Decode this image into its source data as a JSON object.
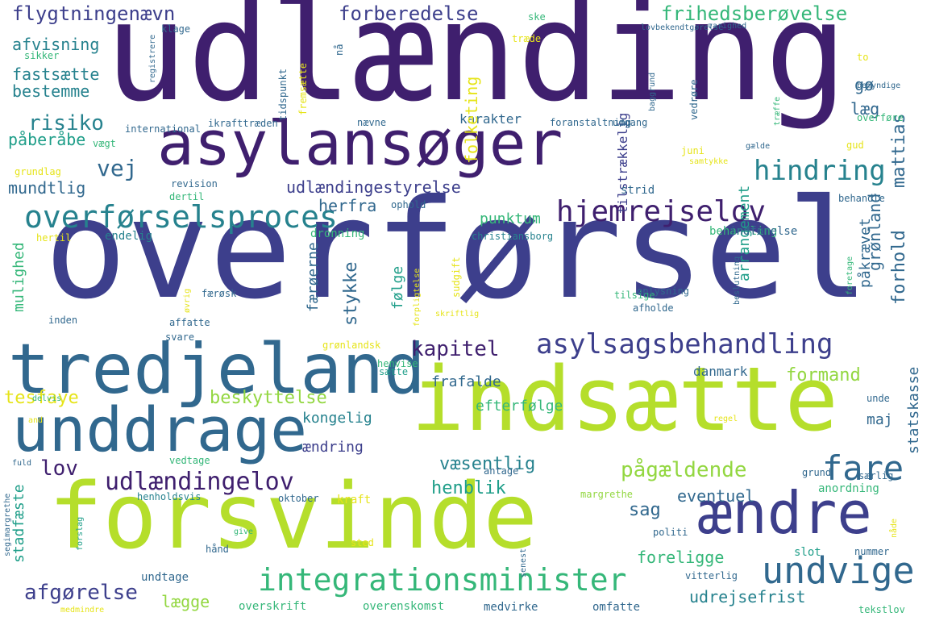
{
  "palette": {
    "dark_purple": "#3f1f6e",
    "indigo": "#3d3f8c",
    "blue": "#31688e",
    "teal": "#26828e",
    "green_teal": "#1f9e89",
    "green": "#35b779",
    "lime": "#93d741",
    "yellow_green": "#b5de2b",
    "yellow": "#e6e419"
  },
  "words": [
    {
      "text": "udlænding",
      "color": "dark_purple"
    },
    {
      "text": "asylansøger",
      "color": "dark_purple"
    },
    {
      "text": "overførsel",
      "color": "indigo"
    },
    {
      "text": "tredjeland",
      "color": "blue"
    },
    {
      "text": "unddrage",
      "color": "blue"
    },
    {
      "text": "forsvinde",
      "color": "yellow_green"
    },
    {
      "text": "indsætte",
      "color": "yellow_green"
    },
    {
      "text": "ændre",
      "color": "indigo"
    },
    {
      "text": "integrationsminister",
      "color": "green"
    },
    {
      "text": "undvige",
      "color": "blue"
    },
    {
      "text": "overførselsproces",
      "color": "teal"
    },
    {
      "text": "hjemrejselov",
      "color": "dark_purple"
    },
    {
      "text": "hindring",
      "color": "teal"
    },
    {
      "text": "asylsagsbehandling",
      "color": "indigo"
    },
    {
      "text": "kapitel",
      "color": "dark_purple"
    },
    {
      "text": "udlændingelov",
      "color": "dark_purple"
    },
    {
      "text": "pågældende",
      "color": "lime"
    },
    {
      "text": "fare",
      "color": "blue"
    },
    {
      "text": "flygtningenævn",
      "color": "indigo"
    },
    {
      "text": "forberedelse",
      "color": "indigo"
    },
    {
      "text": "frihedsberøvelse",
      "color": "green"
    },
    {
      "text": "risiko",
      "color": "teal"
    },
    {
      "text": "vej",
      "color": "blue"
    },
    {
      "text": "udlændingestyrelse",
      "color": "indigo"
    },
    {
      "text": "beskyttelse",
      "color": "lime"
    },
    {
      "text": "tesfaye",
      "color": "yellow"
    },
    {
      "text": "afgørelse",
      "color": "indigo"
    },
    {
      "text": "lægge",
      "color": "lime"
    },
    {
      "text": "udrejsefrist",
      "color": "teal"
    },
    {
      "text": "formand",
      "color": "lime"
    },
    {
      "text": "væsentlig",
      "color": "teal"
    },
    {
      "text": "henblik",
      "color": "green_teal"
    },
    {
      "text": "sag",
      "color": "blue"
    },
    {
      "text": "eventuel",
      "color": "blue"
    },
    {
      "text": "foreligge",
      "color": "green"
    },
    {
      "text": "lov",
      "color": "dark_purple"
    },
    {
      "text": "mundtlig",
      "color": "blue"
    },
    {
      "text": "fastsætte",
      "color": "teal"
    },
    {
      "text": "bestemme",
      "color": "teal"
    },
    {
      "text": "afvisning",
      "color": "teal"
    },
    {
      "text": "påberåbe",
      "color": "green_teal"
    },
    {
      "text": "herfra",
      "color": "blue"
    },
    {
      "text": "punktum",
      "color": "green"
    },
    {
      "text": "kongelig",
      "color": "teal"
    },
    {
      "text": "ændring",
      "color": "indigo"
    },
    {
      "text": "frafalde",
      "color": "blue"
    },
    {
      "text": "efterfølge",
      "color": "green"
    },
    {
      "text": "danmark",
      "color": "blue"
    },
    {
      "text": "maj",
      "color": "blue"
    },
    {
      "text": "karakter",
      "color": "blue"
    },
    {
      "text": "læg",
      "color": "blue"
    },
    {
      "text": "gø",
      "color": "blue"
    },
    {
      "text": "mattias",
      "color": "blue"
    },
    {
      "text": "forhold",
      "color": "blue"
    },
    {
      "text": "grønland",
      "color": "blue"
    },
    {
      "text": "påkrævet",
      "color": "blue"
    },
    {
      "text": "arrangement",
      "color": "green_teal"
    },
    {
      "text": "tilstrækkelig",
      "color": "indigo"
    },
    {
      "text": "statskasse",
      "color": "blue"
    },
    {
      "text": "stykke",
      "color": "blue"
    },
    {
      "text": "følge",
      "color": "green_teal"
    },
    {
      "text": "færøerne",
      "color": "blue"
    },
    {
      "text": "mulighed",
      "color": "green"
    },
    {
      "text": "stadfæste",
      "color": "green_teal"
    },
    {
      "text": "anordning",
      "color": "green"
    },
    {
      "text": "overskrift",
      "color": "green"
    },
    {
      "text": "overenskomst",
      "color": "green"
    },
    {
      "text": "medvirke",
      "color": "blue"
    },
    {
      "text": "omfatte",
      "color": "blue"
    },
    {
      "text": "undtage",
      "color": "blue"
    },
    {
      "text": "vedtage",
      "color": "green"
    },
    {
      "text": "antage",
      "color": "blue"
    },
    {
      "text": "oktober",
      "color": "blue"
    },
    {
      "text": "kraft",
      "color": "yellow"
    },
    {
      "text": "margrethe",
      "color": "lime"
    },
    {
      "text": "henholdsvis",
      "color": "teal"
    },
    {
      "text": "politi",
      "color": "blue"
    },
    {
      "text": "slot",
      "color": "green_teal"
    },
    {
      "text": "vitterlig",
      "color": "blue"
    },
    {
      "text": "nummer",
      "color": "blue"
    },
    {
      "text": "tekstlov",
      "color": "green"
    },
    {
      "text": "grund",
      "color": "blue"
    },
    {
      "text": "særlig",
      "color": "blue"
    },
    {
      "text": "unde",
      "color": "blue"
    },
    {
      "text": "regel",
      "color": "yellow"
    },
    {
      "text": "nåde",
      "color": "yellow"
    },
    {
      "text": "senest",
      "color": "blue"
    },
    {
      "text": "sted",
      "color": "yellow"
    },
    {
      "text": "hånd",
      "color": "blue"
    },
    {
      "text": "give",
      "color": "green"
    },
    {
      "text": "forslag",
      "color": "green_teal"
    },
    {
      "text": "medmindre",
      "color": "yellow"
    },
    {
      "text": "segimargrethe",
      "color": "blue"
    },
    {
      "text": "fuld",
      "color": "blue"
    },
    {
      "text": "and",
      "color": "yellow"
    },
    {
      "text": "delvis",
      "color": "green"
    },
    {
      "text": "svare",
      "color": "blue"
    },
    {
      "text": "affatte",
      "color": "blue"
    },
    {
      "text": "grønlandsk",
      "color": "yellow"
    },
    {
      "text": "inden",
      "color": "blue"
    },
    {
      "text": "henvise",
      "color": "green"
    },
    {
      "text": "sætte",
      "color": "green_teal"
    },
    {
      "text": "skriftlig",
      "color": "yellow"
    },
    {
      "text": "forpligtelse",
      "color": "yellow"
    },
    {
      "text": "sudgift",
      "color": "yellow"
    },
    {
      "text": "øvrig",
      "color": "yellow"
    },
    {
      "text": "færøsk",
      "color": "blue"
    },
    {
      "text": "tilsige",
      "color": "green"
    },
    {
      "text": "afholde",
      "color": "blue"
    },
    {
      "text": "oplysning",
      "color": "blue"
    },
    {
      "text": "beslutning",
      "color": "blue"
    },
    {
      "text": "foretage",
      "color": "green"
    },
    {
      "text": "behandling",
      "color": "green"
    },
    {
      "text": "indførelse",
      "color": "blue"
    },
    {
      "text": "dronning",
      "color": "green"
    },
    {
      "text": "christiansborg",
      "color": "teal"
    },
    {
      "text": "endelig",
      "color": "teal"
    },
    {
      "text": "hertil",
      "color": "yellow"
    },
    {
      "text": "ophold",
      "color": "blue"
    },
    {
      "text": "strid",
      "color": "blue"
    },
    {
      "text": "behandle",
      "color": "blue"
    },
    {
      "text": "dertil",
      "color": "green"
    },
    {
      "text": "revision",
      "color": "blue"
    },
    {
      "text": "grundlag",
      "color": "yellow"
    },
    {
      "text": "vægt",
      "color": "green"
    },
    {
      "text": "international",
      "color": "blue"
    },
    {
      "text": "ikrafttræden",
      "color": "blue"
    },
    {
      "text": "nævne",
      "color": "blue"
    },
    {
      "text": "foranstaltning",
      "color": "blue"
    },
    {
      "text": "udgang",
      "color": "blue"
    },
    {
      "text": "overføre",
      "color": "green"
    },
    {
      "text": "gud",
      "color": "yellow"
    },
    {
      "text": "juni",
      "color": "yellow"
    },
    {
      "text": "gælde",
      "color": "blue"
    },
    {
      "text": "samtykke",
      "color": "yellow"
    },
    {
      "text": "træffe",
      "color": "green"
    },
    {
      "text": "baggrund",
      "color": "blue"
    },
    {
      "text": "vedrøre",
      "color": "blue"
    },
    {
      "text": "to",
      "color": "yellow"
    },
    {
      "text": "bemyndige",
      "color": "blue"
    },
    {
      "text": "tidspunkt",
      "color": "blue"
    },
    {
      "text": "fremsætte",
      "color": "yellow"
    },
    {
      "text": "nå",
      "color": "blue"
    },
    {
      "text": "folketing",
      "color": "yellow"
    },
    {
      "text": "registrere",
      "color": "blue"
    },
    {
      "text": "sikker",
      "color": "green"
    },
    {
      "text": "klage",
      "color": "blue"
    },
    {
      "text": "ske",
      "color": "green"
    },
    {
      "text": "træde",
      "color": "yellow"
    },
    {
      "text": "lovbekendtgørelse",
      "color": "blue"
    },
    {
      "text": "varighed",
      "color": "blue"
    }
  ]
}
